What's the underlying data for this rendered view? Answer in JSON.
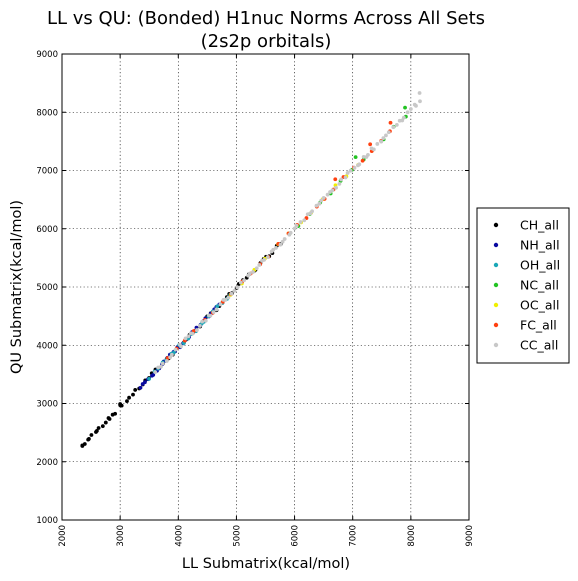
{
  "chart_data": {
    "type": "scatter",
    "title": [
      "LL vs QU: (Bonded) H1nuc Norms Across All Sets",
      "(2s2p orbitals)"
    ],
    "xlabel": "LL Submatrix(kcal/mol)",
    "ylabel": "QU Submatrix(kcal/mol)",
    "xlim": [
      2000,
      9000
    ],
    "ylim": [
      1000,
      9000
    ],
    "xticks": [
      "2000",
      "3000",
      "4000",
      "5000",
      "6000",
      "7000",
      "8000",
      "9000"
    ],
    "yticks": [
      "1000",
      "2000",
      "3000",
      "4000",
      "5000",
      "6000",
      "7000",
      "8000",
      "9000"
    ],
    "grid": true,
    "legend_position": "outside-right",
    "series": [
      {
        "name": "CH_all",
        "color": "#000000",
        "x_range": [
          2350,
          5750
        ],
        "n": 60,
        "extra": [
          [
            2350,
            2270
          ],
          [
            2450,
            2380
          ],
          [
            2600,
            2530
          ],
          [
            2800,
            2750
          ],
          [
            3000,
            2990
          ]
        ]
      },
      {
        "name": "NH_all",
        "color": "#0a0aa0",
        "x_range": [
          3350,
          4700
        ],
        "n": 30,
        "extra": []
      },
      {
        "name": "OH_all",
        "color": "#1aa7b7",
        "x_range": [
          3500,
          4900
        ],
        "n": 20,
        "extra": []
      },
      {
        "name": "NC_all",
        "color": "#22c322",
        "x_range": [
          5900,
          7900
        ],
        "n": 12,
        "extra": [
          [
            7900,
            8080
          ],
          [
            7050,
            7230
          ]
        ]
      },
      {
        "name": "OC_all",
        "color": "#f0f000",
        "x_range": [
          4900,
          7100
        ],
        "n": 12,
        "extra": []
      },
      {
        "name": "FC_all",
        "color": "#ff4010",
        "x_range": [
          3800,
          7650
        ],
        "n": 25,
        "extra": [
          [
            7650,
            7820
          ],
          [
            7300,
            7450
          ],
          [
            6700,
            6850
          ]
        ]
      },
      {
        "name": "CC_all",
        "color": "#c8c8c8",
        "x_range": [
          3600,
          8150
        ],
        "n": 90,
        "extra": [
          [
            8150,
            8330
          ]
        ]
      }
    ],
    "trend": {
      "slope": 1.02,
      "intercept": -120
    }
  }
}
